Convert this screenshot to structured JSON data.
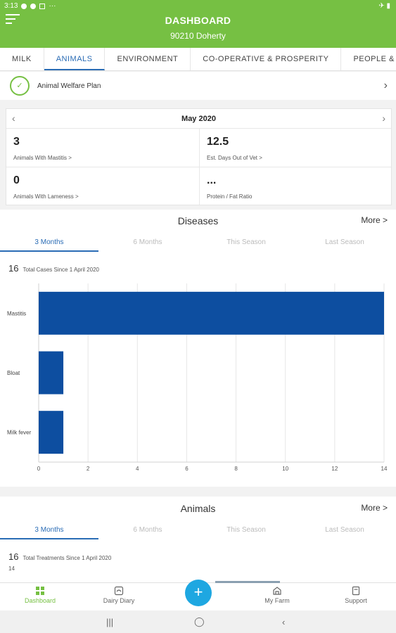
{
  "status": {
    "time": "3:13",
    "right_icons": "✈ ▮"
  },
  "header": {
    "title": "DASHBOARD",
    "subtitle": "90210 Doherty"
  },
  "tabs": [
    {
      "label": "MILK"
    },
    {
      "label": "ANIMALS"
    },
    {
      "label": "ENVIRONMENT"
    },
    {
      "label": "CO-OPERATIVE & PROSPERITY"
    },
    {
      "label": "PEOPLE & COMM"
    }
  ],
  "welfare": {
    "label": "Animal Welfare Plan"
  },
  "stats": {
    "month": "May 2020",
    "mastitis": {
      "value": "3",
      "label": "Animals With Mastitis >"
    },
    "days_out": {
      "value": "12.5",
      "label": "Est. Days Out of Vet >"
    },
    "lameness": {
      "value": "0",
      "label": "Animals With Lameness >"
    },
    "ratio": {
      "value": "...",
      "label": "Protein / Fat Ratio"
    }
  },
  "diseases": {
    "title": "Diseases",
    "more": "More >",
    "periods": [
      "3 Months",
      "6 Months",
      "This Season",
      "Last Season"
    ],
    "total_value": "16",
    "total_label": "Total Cases Since 1 April 2020"
  },
  "animals": {
    "title": "Animals",
    "more": "More >",
    "periods": [
      "3 Months",
      "6 Months",
      "This Season",
      "Last Season"
    ],
    "total_value": "16",
    "total_label": "Total Treatments Since 1 April 2020",
    "axis_top": "14"
  },
  "chart_data": {
    "type": "bar",
    "orientation": "horizontal",
    "categories": [
      "Mastitis",
      "Bloat",
      "Milk fever"
    ],
    "values": [
      14,
      1,
      1
    ],
    "xlim": [
      0,
      14
    ],
    "xticks": [
      0,
      2,
      4,
      6,
      8,
      10,
      12,
      14
    ],
    "color": "#0d4ea0",
    "grid": true
  },
  "nav": [
    {
      "label": "Dashboard"
    },
    {
      "label": "Dairy Diary"
    },
    {
      "label": "My Farm"
    },
    {
      "label": "Support"
    }
  ],
  "colors": {
    "brand": "#76c043",
    "accent": "#2a6cb5",
    "fab": "#1ea7e1"
  }
}
